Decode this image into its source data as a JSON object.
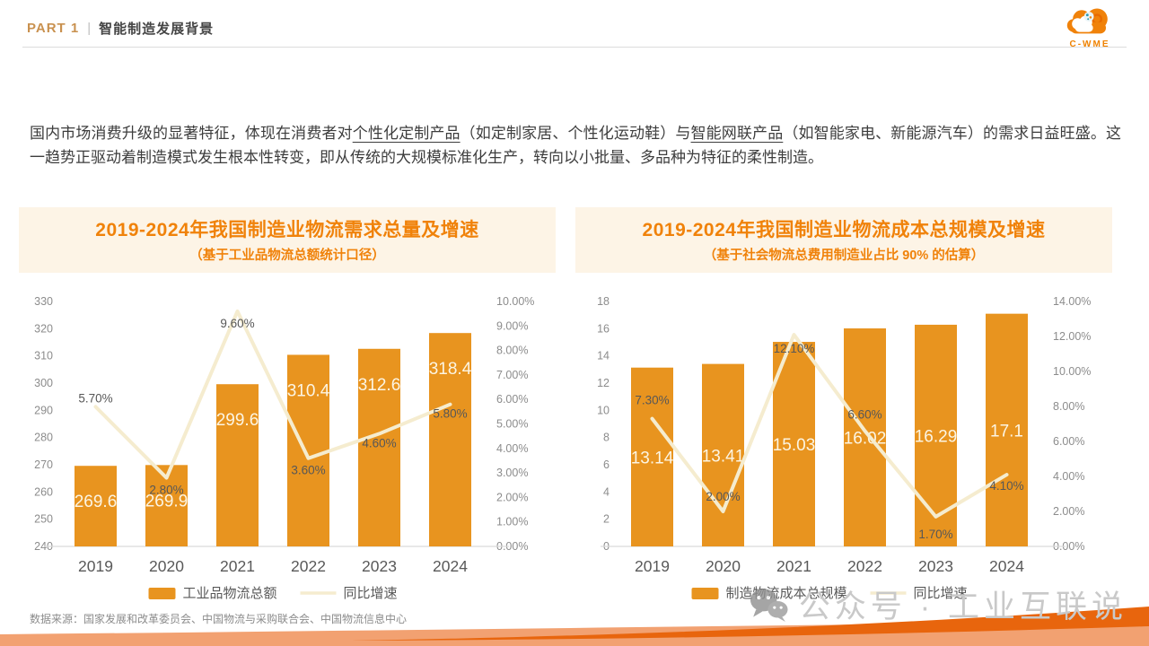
{
  "header": {
    "part_label": "PART 1",
    "separator": "|",
    "section_title": "智能制造发展背景",
    "logo_text": "C-WME"
  },
  "intro_paragraph": {
    "segments": [
      {
        "text": "国内市场消费升级的显著特征，体现在消费者对",
        "underline": false
      },
      {
        "text": "个性化定制产品",
        "underline": true
      },
      {
        "text": "（如定制家居、个性化运动鞋）与",
        "underline": false
      },
      {
        "text": "智能网联产品",
        "underline": true
      },
      {
        "text": "（如智能家电、新能源汽车）的需求日益旺盛。这一趋势正驱动着制造模式发生根本性转变，即从传统的大规模标准化生产，转向以小批量、多品种为特征的柔性制造。",
        "underline": false
      }
    ]
  },
  "chart_data": [
    {
      "type": "bar",
      "title": "2019-2024年我国制造业物流需求总量及增速",
      "subtitle": "（基于工业品物流总额统计口径）",
      "categories": [
        "2019",
        "2020",
        "2021",
        "2022",
        "2023",
        "2024"
      ],
      "series": [
        {
          "name": "工业品物流总额",
          "kind": "bar",
          "axis": "left",
          "values": [
            269.6,
            269.9,
            299.6,
            310.4,
            312.6,
            318.4
          ],
          "labels": [
            "269.6",
            "269.9",
            "299.6",
            "310.4",
            "312.6",
            "318.4"
          ]
        },
        {
          "name": "同比增速",
          "kind": "line",
          "axis": "right",
          "values": [
            5.7,
            2.8,
            9.6,
            3.6,
            4.6,
            5.8
          ],
          "labels": [
            "5.70%",
            "2.80%",
            "9.60%",
            "3.60%",
            "4.60%",
            "5.80%"
          ]
        }
      ],
      "left_axis": {
        "min": 240,
        "max": 330,
        "step": 10
      },
      "right_axis": {
        "min": 0,
        "max": 10,
        "step": 1,
        "format": "percent"
      },
      "legend_position": "bottom",
      "grid": false
    },
    {
      "type": "bar",
      "title": "2019-2024年我国制造业物流成本总规模及增速",
      "subtitle": "（基于社会物流总费用制造业占比 90% 的估算）",
      "categories": [
        "2019",
        "2020",
        "2021",
        "2022",
        "2023",
        "2024"
      ],
      "series": [
        {
          "name": "制造物流成本总规模",
          "kind": "bar",
          "axis": "left",
          "values": [
            13.14,
            13.41,
            15.03,
            16.02,
            16.29,
            17.1
          ],
          "labels": [
            "13.14",
            "13.41",
            "15.03",
            "16.02",
            "16.29",
            "17.1"
          ]
        },
        {
          "name": "同比增速",
          "kind": "line",
          "axis": "right",
          "values": [
            7.3,
            2.0,
            12.1,
            6.6,
            1.7,
            4.1
          ],
          "labels": [
            "7.30%",
            "2.00%",
            "12.10%",
            "6.60%",
            "1.70%",
            "4.10%"
          ]
        }
      ],
      "left_axis": {
        "min": 0,
        "max": 18,
        "step": 2
      },
      "right_axis": {
        "min": 0,
        "max": 14,
        "step": 2,
        "format": "percent"
      },
      "legend_position": "bottom",
      "grid": false
    }
  ],
  "footer": {
    "data_source": "数据来源：国家发展和改革委员会、中国物流与采购联合会、中国物流信息中心"
  },
  "watermark": {
    "icon": "wechat-icon",
    "text": "公众号 · 工业互联说"
  },
  "colors": {
    "bar_orange": "#E8941F",
    "title_orange": "#F0820A",
    "line_cream": "#F5ECCF",
    "part_label": "#C9914F",
    "band_dark": "#E8650D",
    "band_light": "#F2A171",
    "axis_text": "#8C8C8C",
    "label_text": "#595959",
    "bar_label_text": "#FCF5E3",
    "watermark_text": "#C9C9C9",
    "title_block_bg": "#FDF4E6"
  }
}
